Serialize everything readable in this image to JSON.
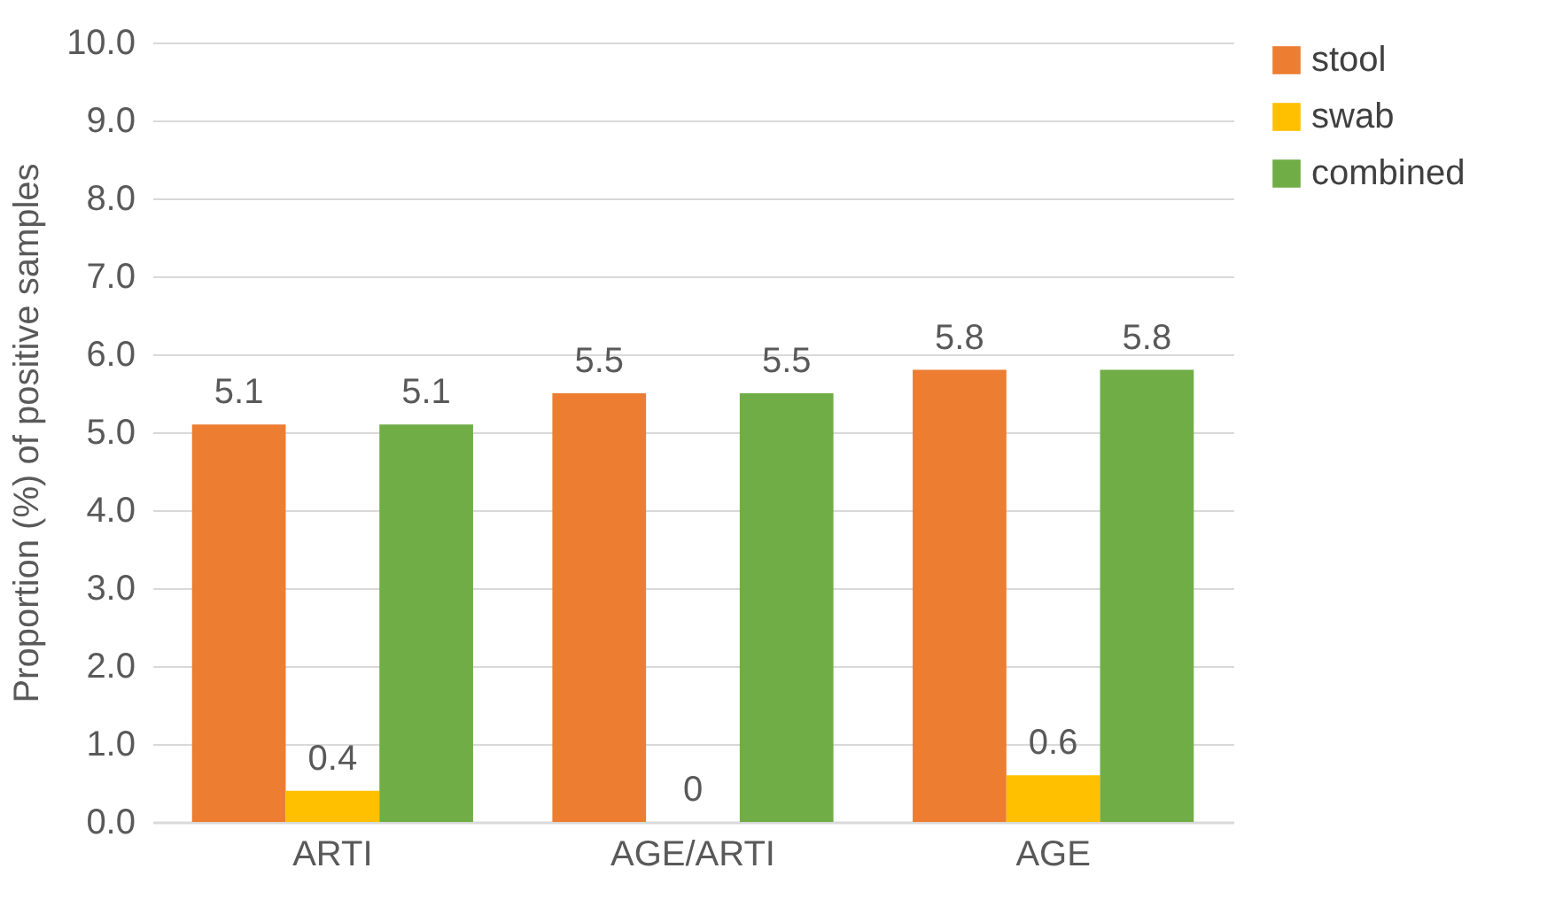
{
  "chart_data": {
    "type": "bar",
    "ylabel": "Proportion (%) of positive samples",
    "categories": [
      "ARTI",
      "AGE/ARTI",
      "AGE"
    ],
    "series": [
      {
        "name": "stool",
        "color": "#ed7d31",
        "values": [
          5.1,
          5.5,
          5.8
        ]
      },
      {
        "name": "swab",
        "color": "#ffc000",
        "values": [
          0.4,
          0,
          0.6
        ]
      },
      {
        "name": "combined",
        "color": "#70ad47",
        "values": [
          5.1,
          5.5,
          5.8
        ]
      }
    ],
    "ylim": [
      0,
      10
    ],
    "yticks": [
      {
        "value": 0,
        "label": "0.0"
      },
      {
        "value": 1,
        "label": "1.0"
      },
      {
        "value": 2,
        "label": "2.0"
      },
      {
        "value": 3,
        "label": "3.0"
      },
      {
        "value": 4,
        "label": "4.0"
      },
      {
        "value": 5,
        "label": "5.0"
      },
      {
        "value": 6,
        "label": "6.0"
      },
      {
        "value": 7,
        "label": "7.0"
      },
      {
        "value": 8,
        "label": "8.0"
      },
      {
        "value": 9,
        "label": "9.0"
      },
      {
        "value": 10,
        "label": "10.0"
      }
    ],
    "grid": "y",
    "legend": "right",
    "data_labels": true
  }
}
